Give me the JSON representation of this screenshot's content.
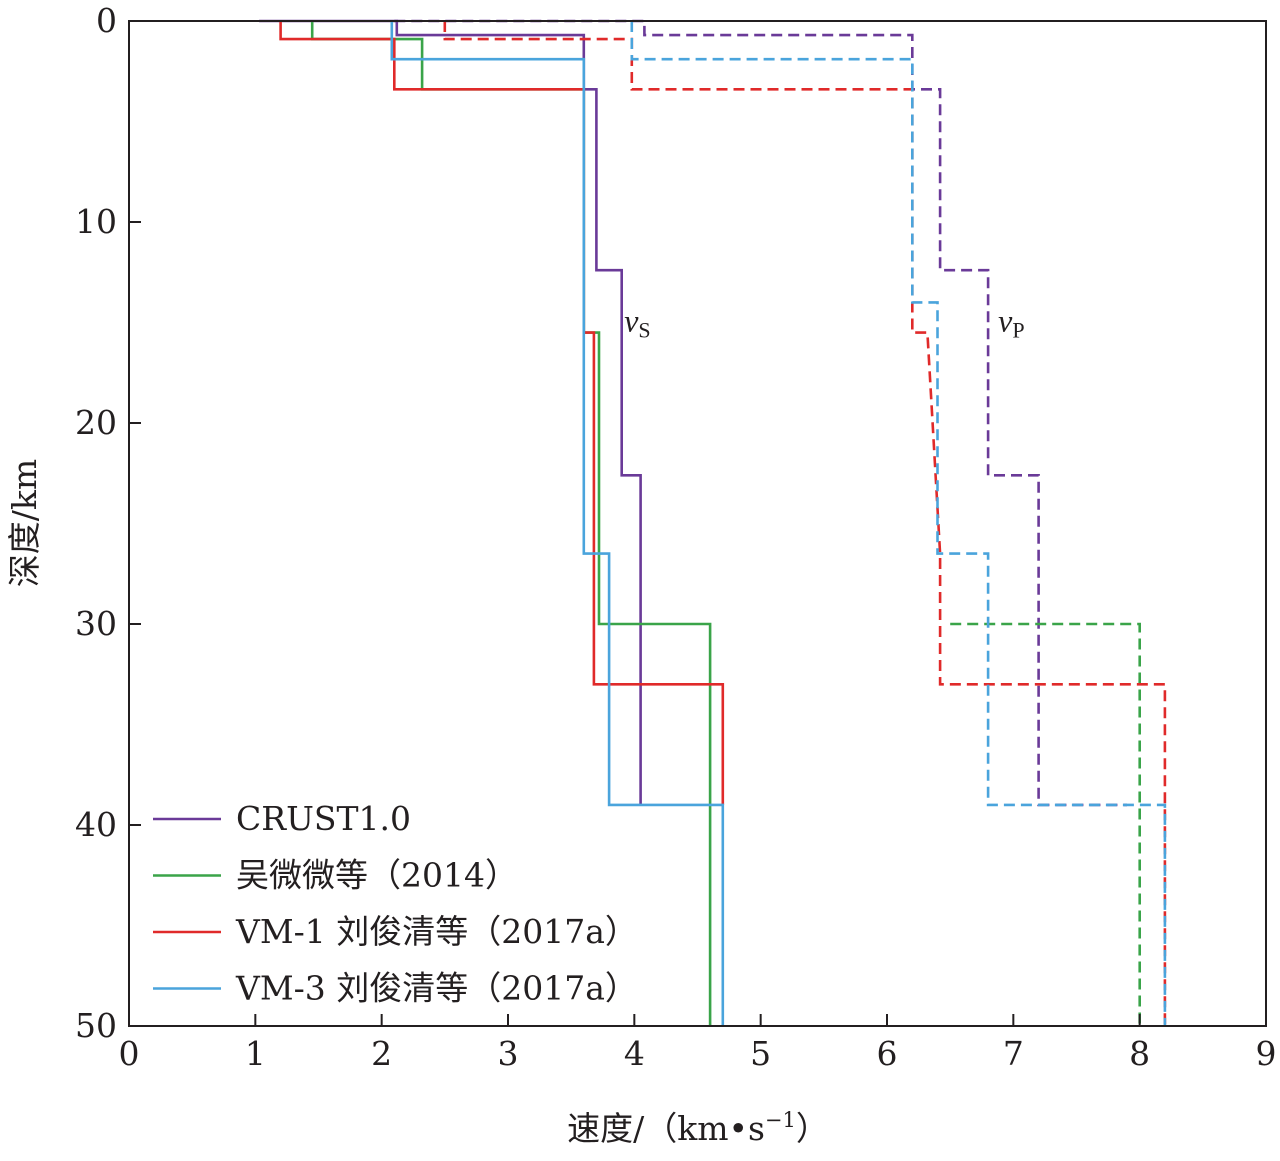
{
  "chart_data": {
    "type": "line",
    "xlabel": "速度/（km•s",
    "xlabel_sup": "−1",
    "xlabel_close": "）",
    "ylabel": "深度/km",
    "xlim": [
      0,
      9
    ],
    "ylim": [
      0,
      50
    ],
    "y_inverted": true,
    "x_ticks": [
      0,
      1,
      2,
      3,
      4,
      5,
      6,
      7,
      8,
      9
    ],
    "y_ticks": [
      0,
      10,
      20,
      30,
      40,
      50
    ],
    "grid": false,
    "legend_position": "bottom-left",
    "annotations": [
      {
        "id": "vs",
        "text": "v",
        "sub": "S",
        "x": 3.92,
        "y": 14.9
      },
      {
        "id": "vp",
        "text": "v",
        "sub": "P",
        "x": 6.88,
        "y": 14.9
      }
    ],
    "series": [
      {
        "name": "CRUST1.0",
        "color": "#6a3a98",
        "vs": [
          [
            1.03,
            0
          ],
          [
            2.12,
            0
          ],
          [
            2.12,
            0.7
          ],
          [
            3.6,
            0.7
          ],
          [
            3.6,
            3.4
          ],
          [
            3.7,
            3.4
          ],
          [
            3.7,
            12.4
          ],
          [
            3.9,
            12.4
          ],
          [
            3.9,
            22.6
          ],
          [
            4.05,
            22.6
          ],
          [
            4.05,
            39
          ]
        ],
        "vp": [
          [
            2.1,
            0
          ],
          [
            4.08,
            0
          ],
          [
            4.08,
            0.7
          ],
          [
            6.2,
            0.7
          ],
          [
            6.2,
            3.4
          ],
          [
            6.42,
            3.4
          ],
          [
            6.42,
            12.4
          ],
          [
            6.8,
            12.4
          ],
          [
            6.8,
            22.6
          ],
          [
            7.2,
            22.6
          ],
          [
            7.2,
            39
          ],
          [
            7.9,
            39
          ]
        ]
      },
      {
        "name": "吴微微等（2014）",
        "color": "#3aa449",
        "vs": [
          [
            1.45,
            0
          ],
          [
            1.45,
            0.9
          ],
          [
            2.32,
            0.9
          ],
          [
            2.32,
            3.4
          ],
          [
            3.6,
            3.4
          ],
          [
            3.6,
            15.5
          ],
          [
            3.72,
            15.5
          ],
          [
            3.72,
            30
          ],
          [
            4.6,
            30
          ],
          [
            4.6,
            50
          ]
        ],
        "vp": [
          [
            6.5,
            30
          ],
          [
            8.0,
            30
          ],
          [
            8.0,
            50
          ]
        ]
      },
      {
        "name": "VM-1 刘俊清等（2017a）",
        "color": "#e02a2a",
        "vs": [
          [
            1.2,
            0
          ],
          [
            1.2,
            0.9
          ],
          [
            2.1,
            0.9
          ],
          [
            2.1,
            3.4
          ],
          [
            3.6,
            3.4
          ],
          [
            3.6,
            15.5
          ],
          [
            3.68,
            15.5
          ],
          [
            3.68,
            33
          ],
          [
            4.7,
            33
          ],
          [
            4.7,
            39
          ]
        ],
        "vp": [
          [
            2.5,
            0
          ],
          [
            2.5,
            0.9
          ],
          [
            3.98,
            0.9
          ],
          [
            3.98,
            3.4
          ],
          [
            6.2,
            3.4
          ],
          [
            6.2,
            15.5
          ],
          [
            6.32,
            15.5
          ],
          [
            6.42,
            26.5
          ],
          [
            6.42,
            33
          ],
          [
            8.2,
            33
          ],
          [
            8.2,
            50
          ]
        ]
      },
      {
        "name": "VM-3 刘俊清等（2017a）",
        "color": "#4aa4dc",
        "vs": [
          [
            2.08,
            0
          ],
          [
            2.08,
            1.9
          ],
          [
            3.6,
            1.9
          ],
          [
            3.6,
            26.5
          ],
          [
            3.8,
            26.5
          ],
          [
            3.8,
            39
          ],
          [
            4.7,
            39
          ],
          [
            4.7,
            50
          ]
        ],
        "vp": [
          [
            3.98,
            0
          ],
          [
            3.98,
            1.9
          ],
          [
            6.2,
            1.9
          ],
          [
            6.2,
            14
          ],
          [
            6.4,
            14
          ],
          [
            6.4,
            26.5
          ],
          [
            6.8,
            26.5
          ],
          [
            6.8,
            39
          ],
          [
            8.2,
            39
          ],
          [
            8.2,
            50
          ]
        ]
      }
    ]
  }
}
